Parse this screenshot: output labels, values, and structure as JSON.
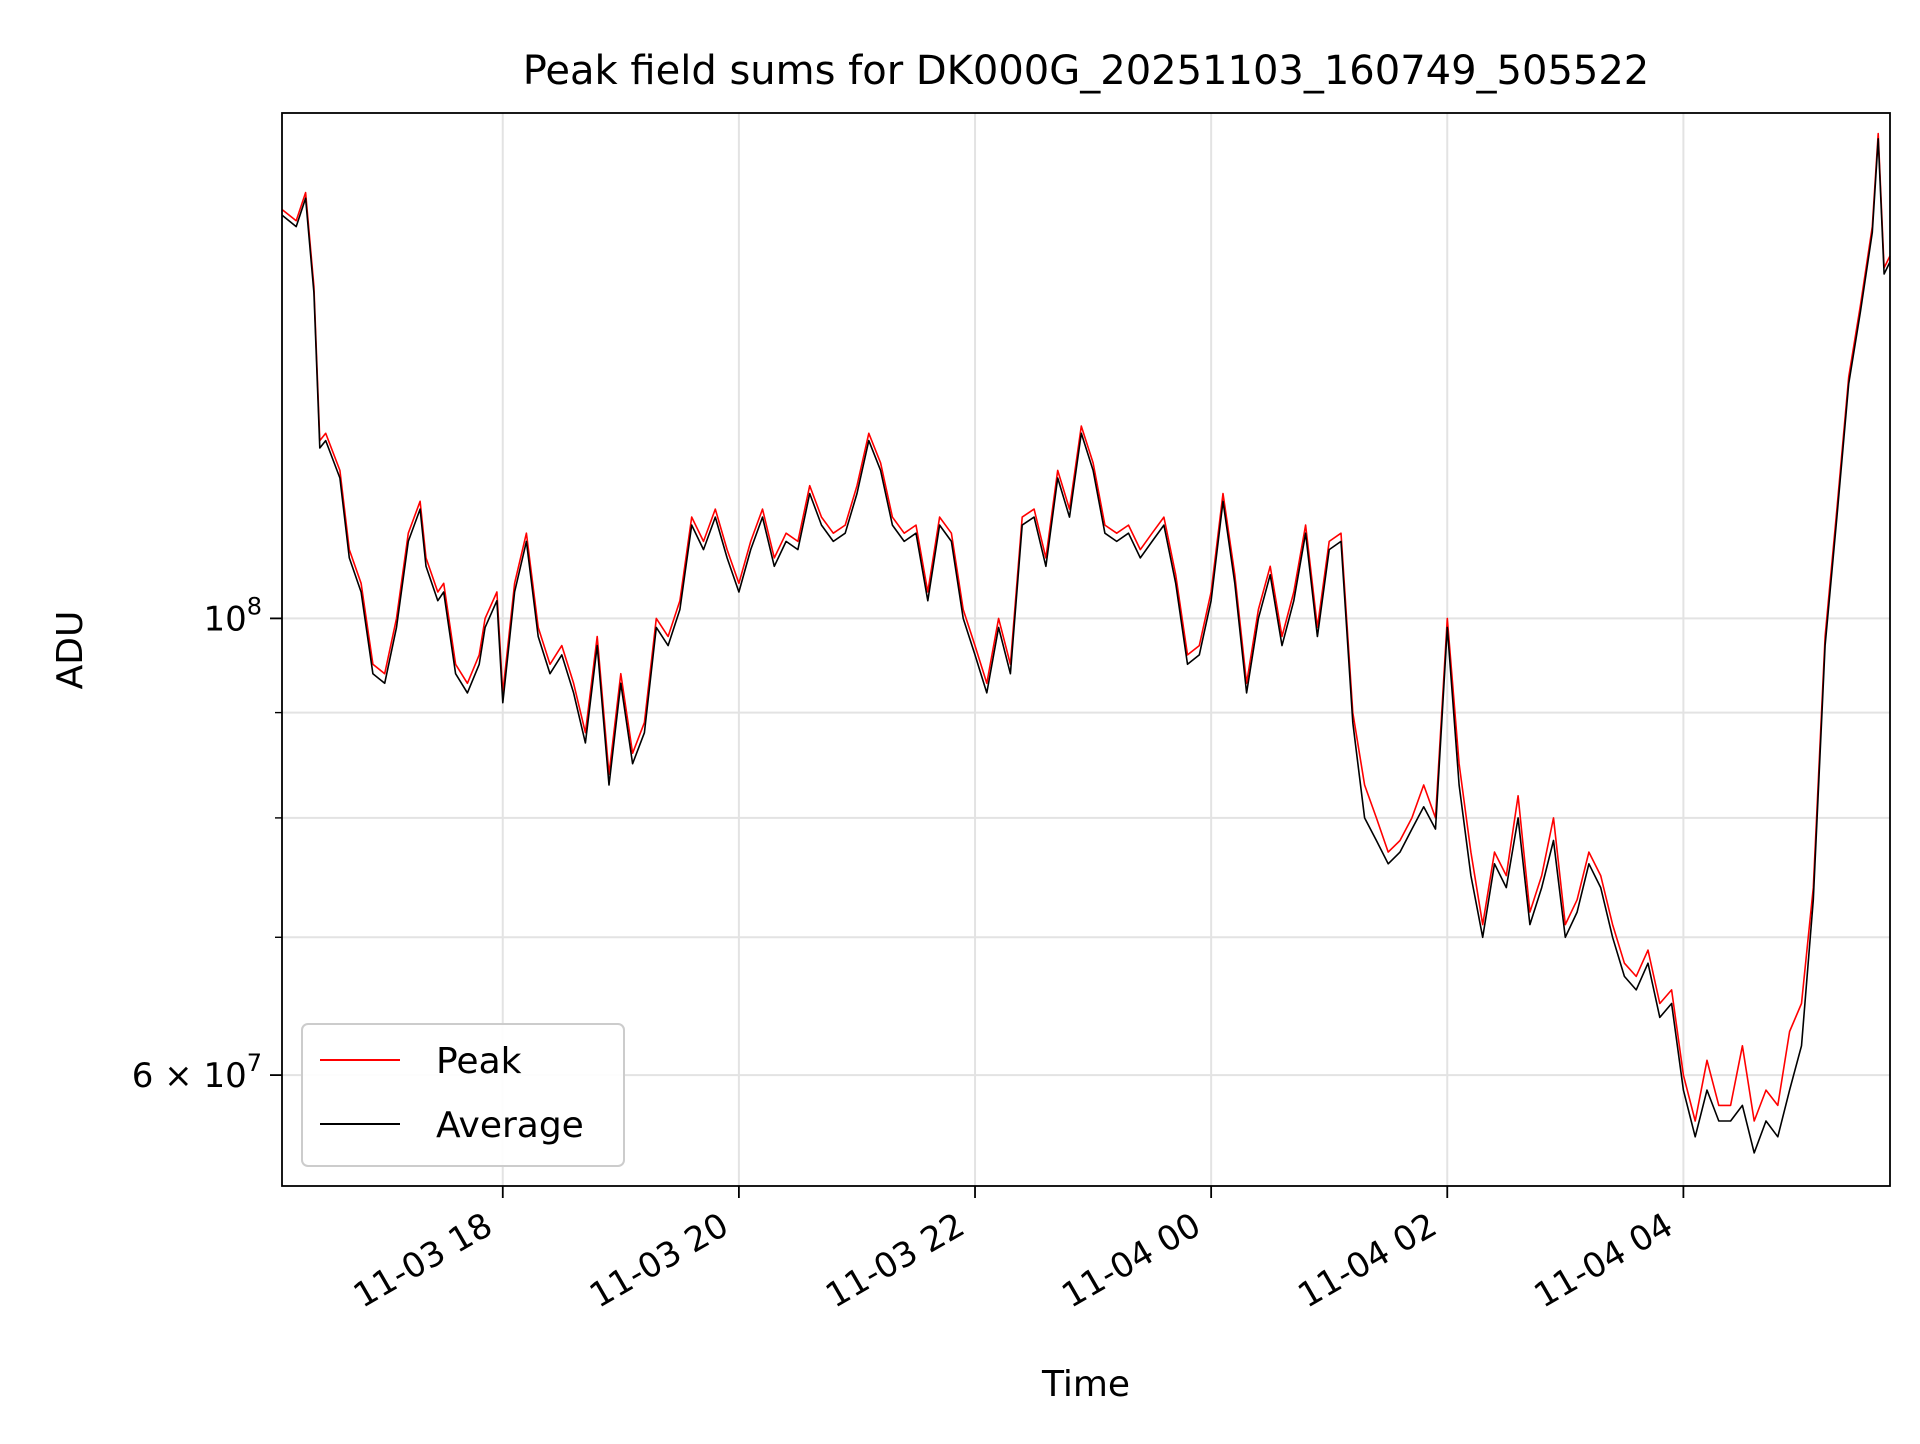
{
  "chart_data": {
    "type": "line",
    "title": "Peak field sums for DK000G_20251103_160749_505522",
    "xlabel": "Time",
    "ylabel": "ADU",
    "yscale": "log",
    "grid": true,
    "legend_position": "lower-left",
    "x_unit": "hours since 2025-11-03 00:00",
    "xlim": [
      16.13,
      29.75
    ],
    "ylim": [
      53000000,
      176000000
    ],
    "x_ticks": [
      {
        "value": 18,
        "label": "11-03 18"
      },
      {
        "value": 20,
        "label": "11-03 20"
      },
      {
        "value": 22,
        "label": "11-03 22"
      },
      {
        "value": 24,
        "label": "11-04 00"
      },
      {
        "value": 26,
        "label": "11-04 02"
      },
      {
        "value": 28,
        "label": "11-04 04"
      }
    ],
    "y_major_ticks": [
      {
        "value": 100000000,
        "base": "10",
        "exp": "8"
      },
      {
        "value": 60000000,
        "mant": "6",
        "base": "10",
        "exp": "7"
      }
    ],
    "y_minor_ticks": [
      70000000,
      80000000,
      90000000
    ],
    "series": [
      {
        "name": "Peak",
        "color": "#ff0000",
        "x": [
          16.13,
          16.25,
          16.33,
          16.4,
          16.45,
          16.5,
          16.62,
          16.7,
          16.8,
          16.9,
          17.0,
          17.1,
          17.2,
          17.3,
          17.35,
          17.45,
          17.5,
          17.6,
          17.7,
          17.8,
          17.85,
          17.95,
          18.0,
          18.1,
          18.2,
          18.3,
          18.4,
          18.5,
          18.6,
          18.7,
          18.8,
          18.9,
          19.0,
          19.1,
          19.2,
          19.3,
          19.4,
          19.5,
          19.6,
          19.7,
          19.8,
          19.9,
          20.0,
          20.1,
          20.2,
          20.3,
          20.4,
          20.5,
          20.6,
          20.7,
          20.8,
          20.9,
          21.0,
          21.1,
          21.2,
          21.3,
          21.4,
          21.5,
          21.6,
          21.7,
          21.8,
          21.9,
          22.0,
          22.1,
          22.2,
          22.3,
          22.4,
          22.5,
          22.6,
          22.7,
          22.8,
          22.9,
          23.0,
          23.1,
          23.2,
          23.3,
          23.4,
          23.5,
          23.6,
          23.7,
          23.8,
          23.9,
          24.0,
          24.1,
          24.2,
          24.3,
          24.4,
          24.5,
          24.6,
          24.7,
          24.8,
          24.9,
          25.0,
          25.1,
          25.2,
          25.3,
          25.4,
          25.5,
          25.6,
          25.7,
          25.8,
          25.9,
          26.0,
          26.1,
          26.2,
          26.3,
          26.4,
          26.5,
          26.6,
          26.7,
          26.8,
          26.9,
          27.0,
          27.1,
          27.2,
          27.3,
          27.4,
          27.5,
          27.6,
          27.7,
          27.8,
          27.9,
          28.0,
          28.1,
          28.2,
          28.3,
          28.4,
          28.5,
          28.6,
          28.7,
          28.8,
          28.9,
          29.0,
          29.1,
          29.2,
          29.3,
          29.4,
          29.5,
          29.6,
          29.65,
          29.7,
          29.75
        ],
        "values": [
          158000000,
          156000000,
          161000000,
          145000000,
          122000000,
          123000000,
          118000000,
          108000000,
          104000000,
          95000000,
          94000000,
          100000000,
          110000000,
          114000000,
          107000000,
          103000000,
          104000000,
          95000000,
          93000000,
          96000000,
          100000000,
          103000000,
          92000000,
          104000000,
          110000000,
          99000000,
          95000000,
          97000000,
          93000000,
          88000000,
          98000000,
          84000000,
          94000000,
          86000000,
          89000000,
          100000000,
          98000000,
          102000000,
          112000000,
          109000000,
          113000000,
          108000000,
          104000000,
          109000000,
          113000000,
          107000000,
          110000000,
          109000000,
          116000000,
          112000000,
          110000000,
          111000000,
          116000000,
          123000000,
          119000000,
          112000000,
          110000000,
          111000000,
          103000000,
          112000000,
          110000000,
          101000000,
          97000000,
          93000000,
          100000000,
          95000000,
          112000000,
          113000000,
          107000000,
          118000000,
          113000000,
          124000000,
          119000000,
          111000000,
          110000000,
          111000000,
          108000000,
          110000000,
          112000000,
          105000000,
          96000000,
          97000000,
          103000000,
          115000000,
          105000000,
          93000000,
          101000000,
          106000000,
          98000000,
          103000000,
          111000000,
          99000000,
          109000000,
          110000000,
          90000000,
          83000000,
          80000000,
          77000000,
          78000000,
          80000000,
          83000000,
          80000000,
          100000000,
          85000000,
          77000000,
          71000000,
          77000000,
          75000000,
          82000000,
          72000000,
          75000000,
          80000000,
          71000000,
          73000000,
          77000000,
          75000000,
          71000000,
          68000000,
          67000000,
          69000000,
          65000000,
          66000000,
          60000000,
          57000000,
          61000000,
          58000000,
          58000000,
          62000000,
          57000000,
          59000000,
          58000000,
          63000000,
          65000000,
          74000000,
          98000000,
          113000000,
          131000000,
          142000000,
          155000000,
          172000000,
          148000000,
          150000000
        ]
      },
      {
        "name": "Average",
        "color": "#000000",
        "x": [
          16.13,
          16.25,
          16.33,
          16.4,
          16.45,
          16.5,
          16.62,
          16.7,
          16.8,
          16.9,
          17.0,
          17.1,
          17.2,
          17.3,
          17.35,
          17.45,
          17.5,
          17.6,
          17.7,
          17.8,
          17.85,
          17.95,
          18.0,
          18.1,
          18.2,
          18.3,
          18.4,
          18.5,
          18.6,
          18.7,
          18.8,
          18.9,
          19.0,
          19.1,
          19.2,
          19.3,
          19.4,
          19.5,
          19.6,
          19.7,
          19.8,
          19.9,
          20.0,
          20.1,
          20.2,
          20.3,
          20.4,
          20.5,
          20.6,
          20.7,
          20.8,
          20.9,
          21.0,
          21.1,
          21.2,
          21.3,
          21.4,
          21.5,
          21.6,
          21.7,
          21.8,
          21.9,
          22.0,
          22.1,
          22.2,
          22.3,
          22.4,
          22.5,
          22.6,
          22.7,
          22.8,
          22.9,
          23.0,
          23.1,
          23.2,
          23.3,
          23.4,
          23.5,
          23.6,
          23.7,
          23.8,
          23.9,
          24.0,
          24.1,
          24.2,
          24.3,
          24.4,
          24.5,
          24.6,
          24.7,
          24.8,
          24.9,
          25.0,
          25.1,
          25.2,
          25.3,
          25.4,
          25.5,
          25.6,
          25.7,
          25.8,
          25.9,
          26.0,
          26.1,
          26.2,
          26.3,
          26.4,
          26.5,
          26.6,
          26.7,
          26.8,
          26.9,
          27.0,
          27.1,
          27.2,
          27.3,
          27.4,
          27.5,
          27.6,
          27.7,
          27.8,
          27.9,
          28.0,
          28.1,
          28.2,
          28.3,
          28.4,
          28.5,
          28.6,
          28.7,
          28.8,
          28.9,
          29.0,
          29.1,
          29.2,
          29.3,
          29.4,
          29.5,
          29.6,
          29.65,
          29.7,
          29.75
        ],
        "values": [
          157000000,
          155000000,
          160000000,
          144000000,
          121000000,
          122000000,
          117000000,
          107000000,
          103000000,
          94000000,
          93000000,
          99000000,
          109000000,
          113000000,
          106000000,
          102000000,
          103000000,
          94000000,
          92000000,
          95000000,
          99000000,
          102000000,
          91000000,
          103000000,
          109000000,
          98000000,
          94000000,
          96000000,
          92000000,
          87000000,
          97000000,
          83000000,
          93000000,
          85000000,
          88000000,
          99000000,
          97000000,
          101000000,
          111000000,
          108000000,
          112000000,
          107000000,
          103000000,
          108000000,
          112000000,
          106000000,
          109000000,
          108000000,
          115000000,
          111000000,
          109000000,
          110000000,
          115000000,
          122000000,
          118000000,
          111000000,
          109000000,
          110000000,
          102000000,
          111000000,
          109000000,
          100000000,
          96000000,
          92000000,
          99000000,
          94000000,
          111000000,
          112000000,
          106000000,
          117000000,
          112000000,
          123000000,
          118000000,
          110000000,
          109000000,
          110000000,
          107000000,
          109000000,
          111000000,
          104000000,
          95000000,
          96000000,
          102000000,
          114000000,
          104000000,
          92000000,
          100000000,
          105000000,
          97000000,
          102000000,
          110000000,
          98000000,
          108000000,
          109000000,
          89000000,
          80000000,
          78000000,
          76000000,
          77000000,
          79000000,
          81000000,
          79000000,
          99000000,
          83000000,
          75000000,
          70000000,
          76000000,
          74000000,
          80000000,
          71000000,
          74000000,
          78000000,
          70000000,
          72000000,
          76000000,
          74000000,
          70000000,
          67000000,
          66000000,
          68000000,
          64000000,
          65000000,
          59000000,
          56000000,
          59000000,
          57000000,
          57000000,
          58000000,
          55000000,
          57000000,
          56000000,
          59000000,
          62000000,
          73000000,
          97000000,
          112000000,
          130000000,
          141000000,
          154000000,
          171000000,
          147000000,
          149000000
        ]
      }
    ]
  }
}
